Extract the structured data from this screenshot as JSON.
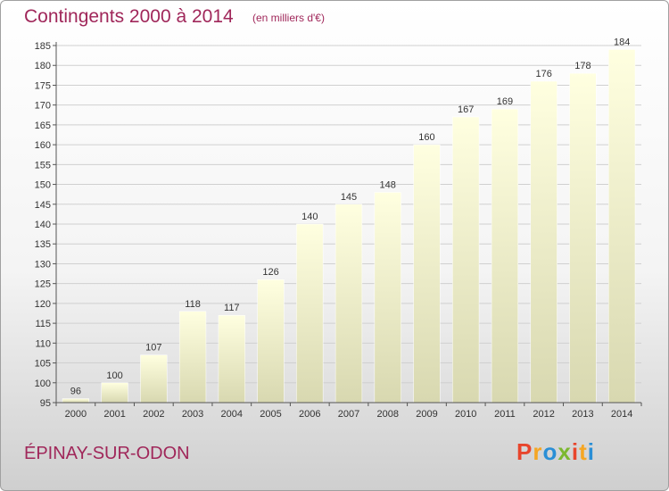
{
  "header": {
    "title": "Contingents 2000 à 2014",
    "subtitle": "(en milliers d'€)"
  },
  "footer": {
    "commune": "ÉPINAY-SUR-ODON",
    "brand": "Proxiti",
    "brand_colors": [
      "#e8452c",
      "#f5a623",
      "#2a8fd6",
      "#7cb82f",
      "#e8452c",
      "#f5a623",
      "#2a8fd6"
    ]
  },
  "colors": {
    "title": "#a0275a",
    "bar_top": "#ffffe0",
    "bar_bottom": "#d8d8b0",
    "grid": "#d0d0d0",
    "axis": "#555555"
  },
  "chart_data": {
    "type": "bar",
    "title": "Contingents 2000 à 2014",
    "subtitle": "(en milliers d'€)",
    "categories": [
      "2000",
      "2001",
      "2002",
      "2003",
      "2004",
      "2005",
      "2006",
      "2007",
      "2008",
      "2009",
      "2010",
      "2011",
      "2012",
      "2013",
      "2014"
    ],
    "values": [
      96,
      100,
      107,
      118,
      117,
      126,
      140,
      145,
      148,
      160,
      167,
      169,
      176,
      178,
      184
    ],
    "ylim": [
      95,
      185
    ],
    "yticks": [
      95,
      100,
      105,
      110,
      115,
      120,
      125,
      130,
      135,
      140,
      145,
      150,
      155,
      160,
      165,
      170,
      175,
      180,
      185
    ],
    "grid": true,
    "xlabel": "",
    "ylabel": ""
  }
}
